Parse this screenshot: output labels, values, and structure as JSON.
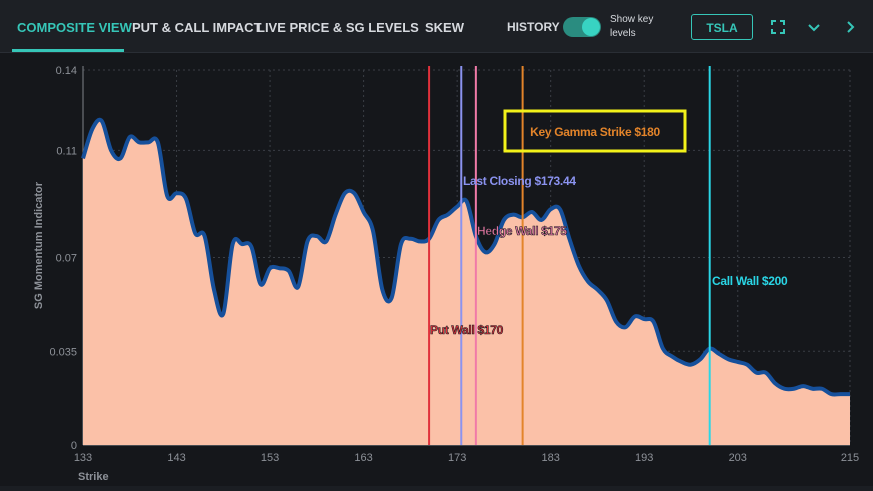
{
  "tabs": [
    {
      "label": "COMPOSITE VIEW",
      "active": true
    },
    {
      "label": "PUT & CALL IMPACT"
    },
    {
      "label": "LIVE PRICE & SG LEVELS"
    },
    {
      "label": "SKEW"
    }
  ],
  "history_label": "HISTORY",
  "toggle_label": "Show key levels",
  "toggle_on": true,
  "ticker": "TSLA",
  "icons": {
    "expand": "expand-icon",
    "dropdown": "chevron-down-icon",
    "next": "chevron-right-icon"
  },
  "colors": {
    "accent": "#36c6b8",
    "fill": "#fbc1a8",
    "line": "#16509b",
    "put_wall": "#e0313b",
    "last_closing": "#8b93f0",
    "hedge_wall": "#f07aa8",
    "key_gamma": "#e3842a",
    "call_wall": "#2ad6e6",
    "highlight_box": "#f2f21a"
  },
  "chart_data": {
    "type": "area",
    "title": "",
    "xlabel": "Strike",
    "ylabel": "SG Momentum Indicator",
    "xlim": [
      133,
      215
    ],
    "ylim": [
      0,
      0.14
    ],
    "x_ticks": [
      "133",
      "143",
      "153",
      "163",
      "173",
      "183",
      "193",
      "203",
      "215"
    ],
    "y_ticks": [
      "0",
      "0.035",
      "0.07",
      "0.11",
      "0.14"
    ],
    "grid": true,
    "series": [
      {
        "x": [
          133,
          134,
          135,
          136,
          137,
          138,
          139,
          140,
          141,
          142,
          143,
          144,
          145,
          146,
          147,
          148,
          149,
          150,
          151,
          152,
          153,
          154,
          155,
          156,
          157,
          158,
          159,
          160,
          161,
          162,
          163,
          164,
          165,
          166,
          167,
          168,
          169,
          170,
          171,
          172,
          173,
          174,
          175,
          176,
          177,
          178,
          179,
          180,
          181,
          182,
          183,
          184,
          185,
          186,
          187,
          188,
          189,
          190,
          191,
          192,
          193,
          194,
          195,
          196,
          197,
          198,
          199,
          200,
          201,
          202,
          203,
          204,
          205,
          206,
          207,
          208,
          209,
          210,
          211,
          212,
          213,
          214,
          215
        ],
        "y": [
          0.107,
          0.118,
          0.121,
          0.11,
          0.107,
          0.115,
          0.113,
          0.113,
          0.113,
          0.093,
          0.094,
          0.092,
          0.079,
          0.078,
          0.058,
          0.049,
          0.075,
          0.075,
          0.074,
          0.06,
          0.066,
          0.066,
          0.065,
          0.059,
          0.076,
          0.078,
          0.076,
          0.086,
          0.094,
          0.094,
          0.087,
          0.08,
          0.058,
          0.055,
          0.075,
          0.077,
          0.076,
          0.077,
          0.084,
          0.086,
          0.089,
          0.091,
          0.078,
          0.072,
          0.075,
          0.084,
          0.086,
          0.085,
          0.087,
          0.084,
          0.088,
          0.088,
          0.077,
          0.067,
          0.061,
          0.058,
          0.054,
          0.046,
          0.044,
          0.048,
          0.047,
          0.046,
          0.036,
          0.033,
          0.031,
          0.03,
          0.032,
          0.036,
          0.034,
          0.032,
          0.031,
          0.03,
          0.027,
          0.027,
          0.023,
          0.021,
          0.021,
          0.022,
          0.021,
          0.021,
          0.019,
          0.019,
          0.019
        ]
      }
    ],
    "key_levels": [
      {
        "label": "Put Wall $170",
        "x": 170,
        "color": "#e0313b"
      },
      {
        "label": "Last Closing $173.44",
        "x": 173.44,
        "color": "#8b93f0"
      },
      {
        "label": "Hedge Wall $175",
        "x": 175,
        "color": "#f07aa8"
      },
      {
        "label": "Key Gamma Strike $180",
        "x": 180,
        "color": "#e3842a",
        "highlighted": true
      },
      {
        "label": "Call Wall $200",
        "x": 200,
        "color": "#2ad6e6"
      }
    ]
  }
}
